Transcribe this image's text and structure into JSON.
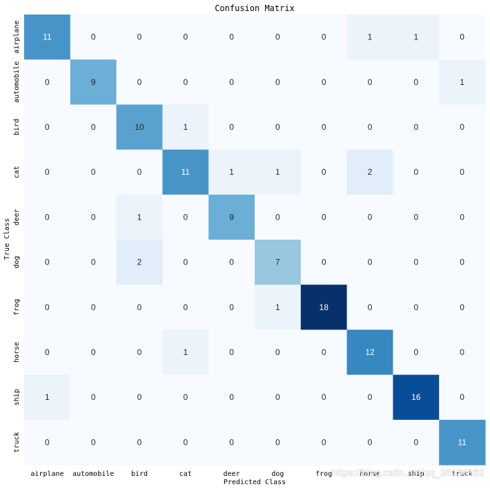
{
  "chart_data": {
    "type": "heatmap",
    "title": "Confusion Matrix",
    "xlabel": "Predicted Class",
    "ylabel": "True Class",
    "x_categories": [
      "airplane",
      "automobile",
      "bird",
      "cat",
      "deer",
      "dog",
      "frog",
      "horse",
      "ship",
      "truck"
    ],
    "y_categories": [
      "airplane",
      "automobile",
      "bird",
      "cat",
      "deer",
      "dog",
      "frog",
      "horse",
      "ship",
      "truck"
    ],
    "values": [
      [
        11,
        0,
        0,
        0,
        0,
        0,
        0,
        1,
        1,
        0
      ],
      [
        0,
        9,
        0,
        0,
        0,
        0,
        0,
        0,
        0,
        1
      ],
      [
        0,
        0,
        10,
        1,
        0,
        0,
        0,
        0,
        0,
        0
      ],
      [
        0,
        0,
        0,
        11,
        1,
        1,
        0,
        2,
        0,
        0
      ],
      [
        0,
        0,
        1,
        0,
        9,
        0,
        0,
        0,
        0,
        0
      ],
      [
        0,
        0,
        2,
        0,
        0,
        7,
        0,
        0,
        0,
        0
      ],
      [
        0,
        0,
        0,
        0,
        0,
        1,
        18,
        0,
        0,
        0
      ],
      [
        0,
        0,
        0,
        1,
        0,
        0,
        0,
        12,
        0,
        0
      ],
      [
        1,
        0,
        0,
        0,
        0,
        0,
        0,
        0,
        16,
        0
      ],
      [
        0,
        0,
        0,
        0,
        0,
        0,
        0,
        0,
        0,
        11
      ]
    ],
    "vmin": 0,
    "vmax": 18,
    "colormap": "Blues",
    "colorbar": false
  },
  "watermark": "https://blog.csdn.net/qq_36136962"
}
